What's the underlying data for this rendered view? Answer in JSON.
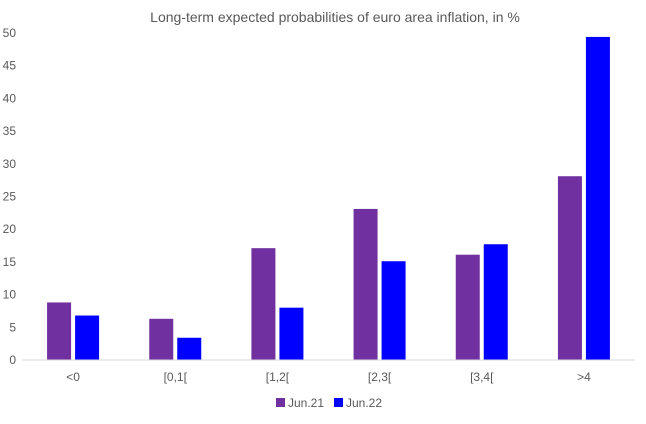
{
  "chart_data": {
    "type": "bar",
    "title": "Long-term expected probabilities of euro area inflation, in %",
    "xlabel": "",
    "ylabel": "",
    "categories": [
      "<0",
      "[0,1[",
      "[1,2[",
      "[2,3[",
      "[3,4[",
      ">4"
    ],
    "series": [
      {
        "name": "Jun.21",
        "color": "#7030a0",
        "values": [
          8.8,
          6.3,
          17.1,
          23.1,
          16.1,
          28.1
        ]
      },
      {
        "name": "Jun.22",
        "color": "#0000ff",
        "values": [
          6.8,
          3.4,
          8.0,
          15.1,
          17.7,
          49.4
        ]
      }
    ],
    "ylim": [
      0,
      50
    ],
    "yticks": [
      0,
      5,
      10,
      15,
      20,
      25,
      30,
      35,
      40,
      45,
      50
    ],
    "grid": false,
    "legend_position": "bottom"
  }
}
